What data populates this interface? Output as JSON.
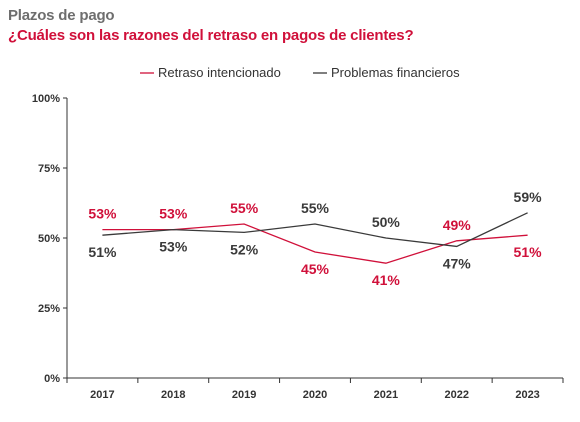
{
  "header": {
    "title": "Plazos de pago",
    "subtitle": "¿Cuáles son las razones del retraso en pagos de clientes?"
  },
  "chart_data": {
    "type": "line",
    "categories": [
      "2017",
      "2018",
      "2019",
      "2020",
      "2021",
      "2022",
      "2023"
    ],
    "series": [
      {
        "name": "Retraso intencionado",
        "color": "#d0103a",
        "values": [
          53,
          53,
          55,
          45,
          41,
          49,
          51
        ],
        "labels": [
          "53%",
          "53%",
          "55%",
          "45%",
          "41%",
          "49%",
          "51%"
        ]
      },
      {
        "name": "Problemas financieros",
        "color": "#3a3a3a",
        "values": [
          51,
          53,
          52,
          55,
          50,
          47,
          59
        ],
        "labels": [
          "51%",
          "53%",
          "52%",
          "55%",
          "50%",
          "47%",
          "59%"
        ]
      }
    ],
    "ylim": [
      0,
      100
    ],
    "yticks": [
      0,
      25,
      50,
      75,
      100
    ],
    "ytick_labels": [
      "0%",
      "25%",
      "50%",
      "75%",
      "100%"
    ],
    "grid": false,
    "legend_position": "top-center"
  }
}
